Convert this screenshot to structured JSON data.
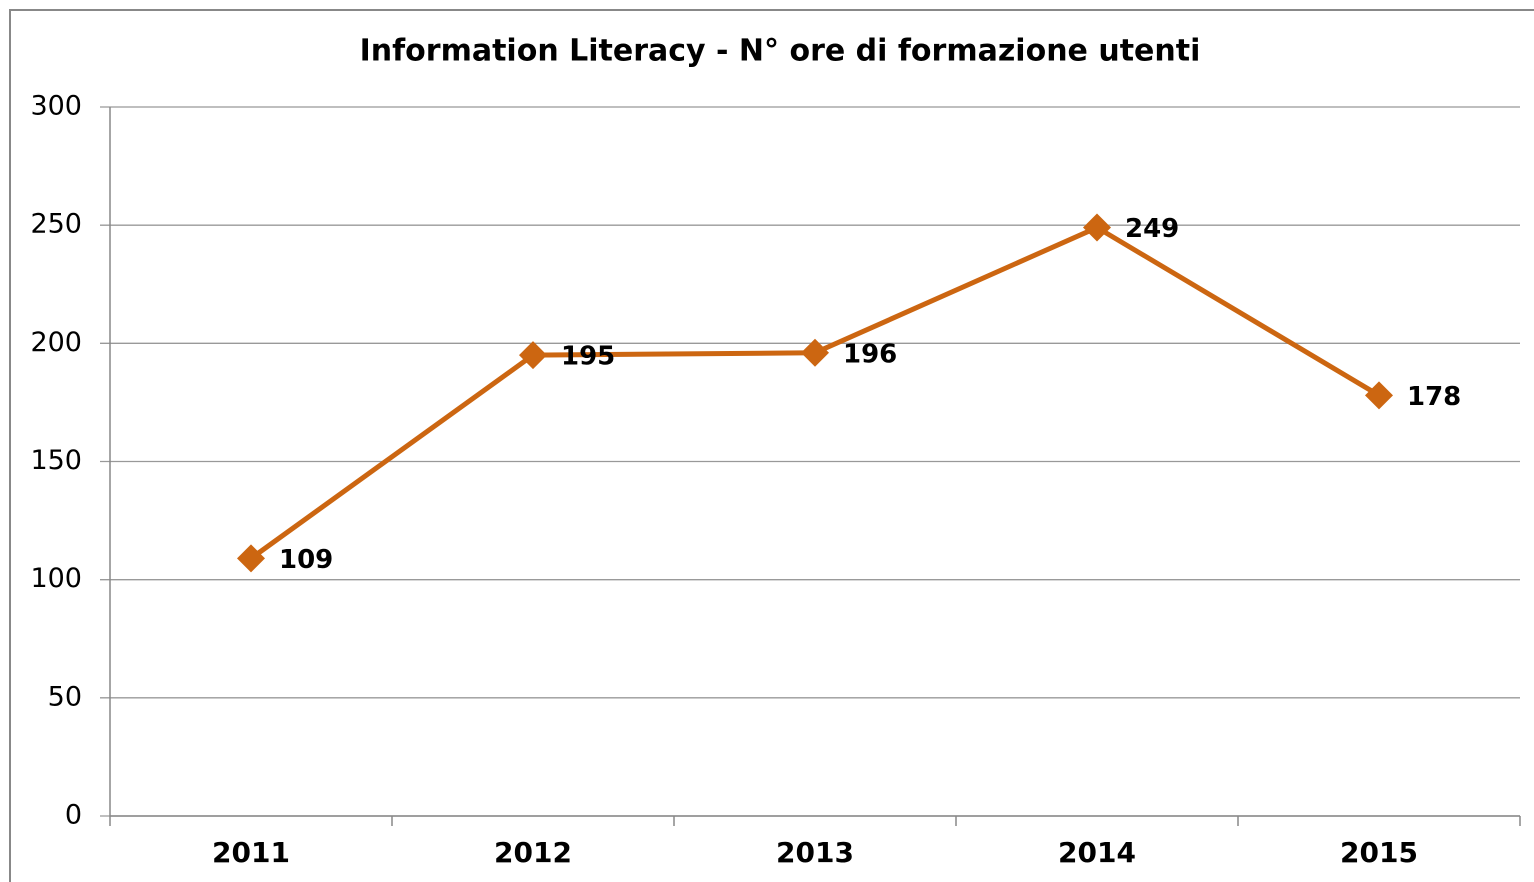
{
  "chart_data": {
    "type": "line",
    "title": "Information Literacy - N° ore di formazione utenti",
    "categories": [
      "2011",
      "2012",
      "2013",
      "2014",
      "2015"
    ],
    "series": [
      {
        "name": "N° ore di formazione utenti",
        "color": "#cc6611",
        "values": [
          109,
          195,
          196,
          249,
          178
        ]
      }
    ],
    "ylim": [
      0,
      300
    ],
    "yticks": [
      0,
      50,
      100,
      150,
      200,
      250,
      300
    ],
    "grid": true
  }
}
